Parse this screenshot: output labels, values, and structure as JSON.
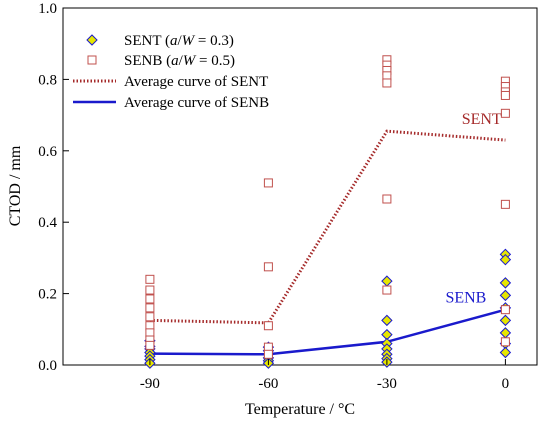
{
  "chart_data": {
    "type": "scatter",
    "title": "",
    "xlabel": "Temperature / °C",
    "ylabel": "CTOD / mm",
    "xlim": [
      -112,
      8
    ],
    "ylim": [
      0,
      1.0
    ],
    "x_ticks": [
      -90,
      -60,
      -30,
      0
    ],
    "y_ticks": [
      0.0,
      0.2,
      0.4,
      0.6,
      0.8,
      1.0
    ],
    "grid": false,
    "legend_position": "top-left",
    "series": [
      {
        "name": "SENT (a/W = 0.3)",
        "legend_parts": [
          "SENT (",
          "a",
          "/",
          "W",
          " = 0.3)"
        ],
        "kind": "scatter",
        "marker": "diamond",
        "color": "#e6e600",
        "points": [
          [
            -90,
            0.068
          ],
          [
            -90,
            0.052
          ],
          [
            -90,
            0.045
          ],
          [
            -90,
            0.035
          ],
          [
            -90,
            0.025
          ],
          [
            -90,
            0.015
          ],
          [
            -90,
            0.005
          ],
          [
            -60,
            0.05
          ],
          [
            -60,
            0.04
          ],
          [
            -60,
            0.03
          ],
          [
            -60,
            0.02
          ],
          [
            -60,
            0.012
          ],
          [
            -60,
            0.005
          ],
          [
            -30,
            0.235
          ],
          [
            -30,
            0.125
          ],
          [
            -30,
            0.085
          ],
          [
            -30,
            0.06
          ],
          [
            -30,
            0.045
          ],
          [
            -30,
            0.03
          ],
          [
            -30,
            0.018
          ],
          [
            -30,
            0.008
          ],
          [
            0,
            0.31
          ],
          [
            0,
            0.295
          ],
          [
            0,
            0.23
          ],
          [
            0,
            0.195
          ],
          [
            0,
            0.16
          ],
          [
            0,
            0.125
          ],
          [
            0,
            0.09
          ],
          [
            0,
            0.06
          ],
          [
            0,
            0.035
          ]
        ]
      },
      {
        "name": "SENB (a/W = 0.5)",
        "legend_parts": [
          "SENB (",
          "a",
          "/",
          "W",
          " = 0.5)"
        ],
        "kind": "scatter",
        "marker": "square-open",
        "color": "#c0504d",
        "points": [
          [
            -90,
            0.24
          ],
          [
            -90,
            0.21
          ],
          [
            -90,
            0.185
          ],
          [
            -90,
            0.16
          ],
          [
            -90,
            0.135
          ],
          [
            -90,
            0.11
          ],
          [
            -90,
            0.09
          ],
          [
            -90,
            0.07
          ],
          [
            -90,
            0.055
          ],
          [
            -60,
            0.51
          ],
          [
            -60,
            0.275
          ],
          [
            -60,
            0.11
          ],
          [
            -60,
            0.05
          ],
          [
            -60,
            0.03
          ],
          [
            -30,
            0.855
          ],
          [
            -30,
            0.84
          ],
          [
            -30,
            0.825
          ],
          [
            -30,
            0.81
          ],
          [
            -30,
            0.79
          ],
          [
            -30,
            0.465
          ],
          [
            -30,
            0.21
          ],
          [
            0,
            0.795
          ],
          [
            0,
            0.78
          ],
          [
            0,
            0.765
          ],
          [
            0,
            0.755
          ],
          [
            0,
            0.705
          ],
          [
            0,
            0.45
          ],
          [
            0,
            0.155
          ],
          [
            0,
            0.065
          ]
        ]
      },
      {
        "name": "Average curve of SENT",
        "kind": "line",
        "style": "dotted",
        "color": "#a52a2a",
        "points": [
          [
            -90,
            0.125
          ],
          [
            -60,
            0.118
          ],
          [
            -30,
            0.655
          ],
          [
            0,
            0.63
          ]
        ]
      },
      {
        "name": "Average curve of SENB",
        "kind": "line",
        "style": "solid",
        "color": "#1a1acc",
        "points": [
          [
            -90,
            0.032
          ],
          [
            -60,
            0.03
          ],
          [
            -30,
            0.065
          ],
          [
            0,
            0.155
          ]
        ]
      }
    ],
    "annotations": [
      {
        "text": "SENT",
        "color": "#a52a2a",
        "x": -6,
        "y": 0.675
      },
      {
        "text": "SENB",
        "color": "#1a1acc",
        "x": -10,
        "y": 0.175
      }
    ]
  }
}
